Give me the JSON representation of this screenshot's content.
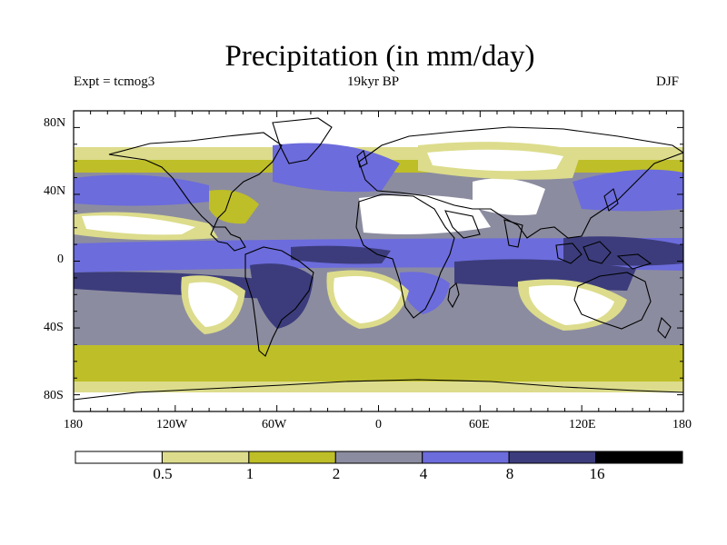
{
  "title": "Precipitation (in mm/day)",
  "experiment": "Expt = tcmog3",
  "period": "19kyr BP",
  "season": "DJF",
  "lat_ticks": [
    "80N",
    "40N",
    "0",
    "40S",
    "80S"
  ],
  "lon_ticks": [
    "180",
    "120W",
    "60W",
    "0",
    "60E",
    "120E",
    "180"
  ],
  "colorbar": {
    "levels": [
      "0.5",
      "1",
      "2",
      "4",
      "8",
      "16"
    ],
    "colors": [
      "#ffffff",
      "#dcdc8c",
      "#bebe28",
      "#8c8ca0",
      "#6c6cdc",
      "#3c3c7c",
      "#000000"
    ]
  },
  "colors": {
    "land_outline": "#000000",
    "frame": "#000000"
  }
}
